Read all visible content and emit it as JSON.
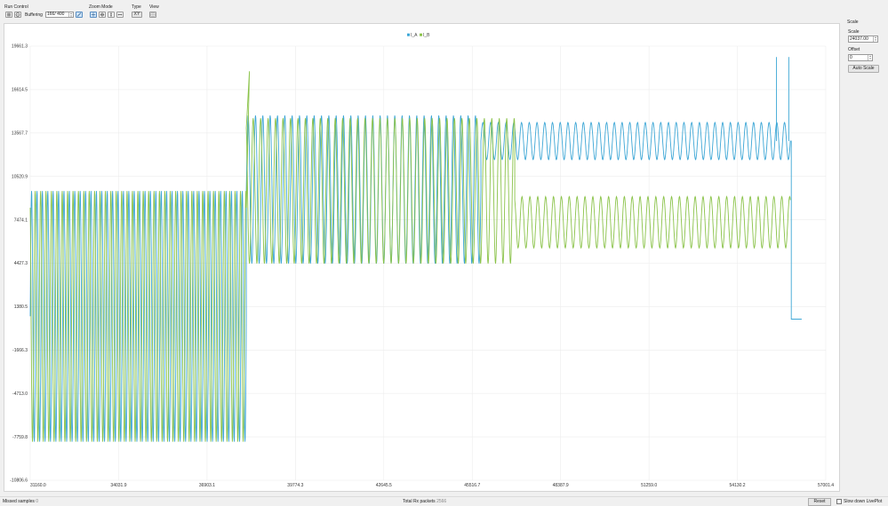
{
  "toolbar": {
    "run_control": {
      "title": "Run Control",
      "pause_icon": "pause-icon",
      "info_icon": "info-icon",
      "buffering_label": "Buffering",
      "buffer_value": "166/ 400"
    },
    "zoom_mode": {
      "title": "Zoom Mode"
    },
    "type": {
      "title": "Type",
      "button_label": "XY"
    },
    "view": {
      "title": "View"
    }
  },
  "chart_data": {
    "type": "line",
    "legend": [
      "I_A",
      "I_B"
    ],
    "legend_placement": "top-center",
    "colors": {
      "I_A": "#3ea7d6",
      "I_B": "#8bc34a"
    },
    "grid": true,
    "xlim": [
      31160.0,
      57001.4
    ],
    "ylim": [
      -10806.6,
      19661.3
    ],
    "x_ticks": [
      "31160.0",
      "34031.9",
      "36903.1",
      "39774.3",
      "42645.5",
      "45516.7",
      "48387.9",
      "51259.0",
      "54130.2",
      "57001.4"
    ],
    "y_ticks": [
      "19661.3",
      "16614.5",
      "13567.7",
      "10520.9",
      "7474.1",
      "4427.3",
      "1380.5",
      "-1666.3",
      "-4713.0",
      "-7759.8",
      "-10806.6"
    ],
    "series": [
      {
        "name": "I_A",
        "segments": [
          {
            "x_start": 31160.0,
            "x_end": 38180.0,
            "cycles": 40,
            "center": 700,
            "amplitude": 8800,
            "phase_deg": 0
          },
          {
            "x_start": 38180.0,
            "x_end": 45800.0,
            "cycles": 32,
            "center": 9600,
            "amplitude": 5200,
            "phase_deg": 0
          },
          {
            "x_start": 45800.0,
            "x_end": 55850.0,
            "cycles": 40,
            "center": 13000,
            "amplitude": 1300,
            "phase_deg": 0
          }
        ],
        "spikes": [
          {
            "x": 55400.0,
            "y": 18900
          },
          {
            "x": 55800.0,
            "y": 18900
          }
        ],
        "tail": {
          "x_drop": 55880.0,
          "y_after": 500,
          "x_end": 56220.0
        }
      },
      {
        "name": "I_B",
        "segments": [
          {
            "x_start": 31160.0,
            "x_end": 38180.0,
            "cycles": 40,
            "center": 700,
            "amplitude": 8800,
            "phase_deg": 120
          },
          {
            "x_start": 38180.0,
            "x_end": 46900.0,
            "cycles": 36,
            "center": 9500,
            "amplitude": 5100,
            "phase_deg": 120
          },
          {
            "x_start": 46900.0,
            "x_end": 55850.0,
            "cycles": 35,
            "center": 7300,
            "amplitude": 1800,
            "phase_deg": 120
          }
        ],
        "overshoot": {
          "x": 38280.0,
          "y": 17900
        }
      }
    ]
  },
  "right_panel": {
    "header": "Scale",
    "scale_label": "Scale",
    "scale_value": "24037.00",
    "offset_label": "Offset",
    "offset_value": "0",
    "auto_scale_label": "Auto Scale"
  },
  "status": {
    "missed_label": "Missed samples",
    "missed_value": "0",
    "total_label": "Total Rx packets",
    "total_value": "2566",
    "reset_label": "Reset",
    "slow_label": "Slow down LivePlot"
  }
}
